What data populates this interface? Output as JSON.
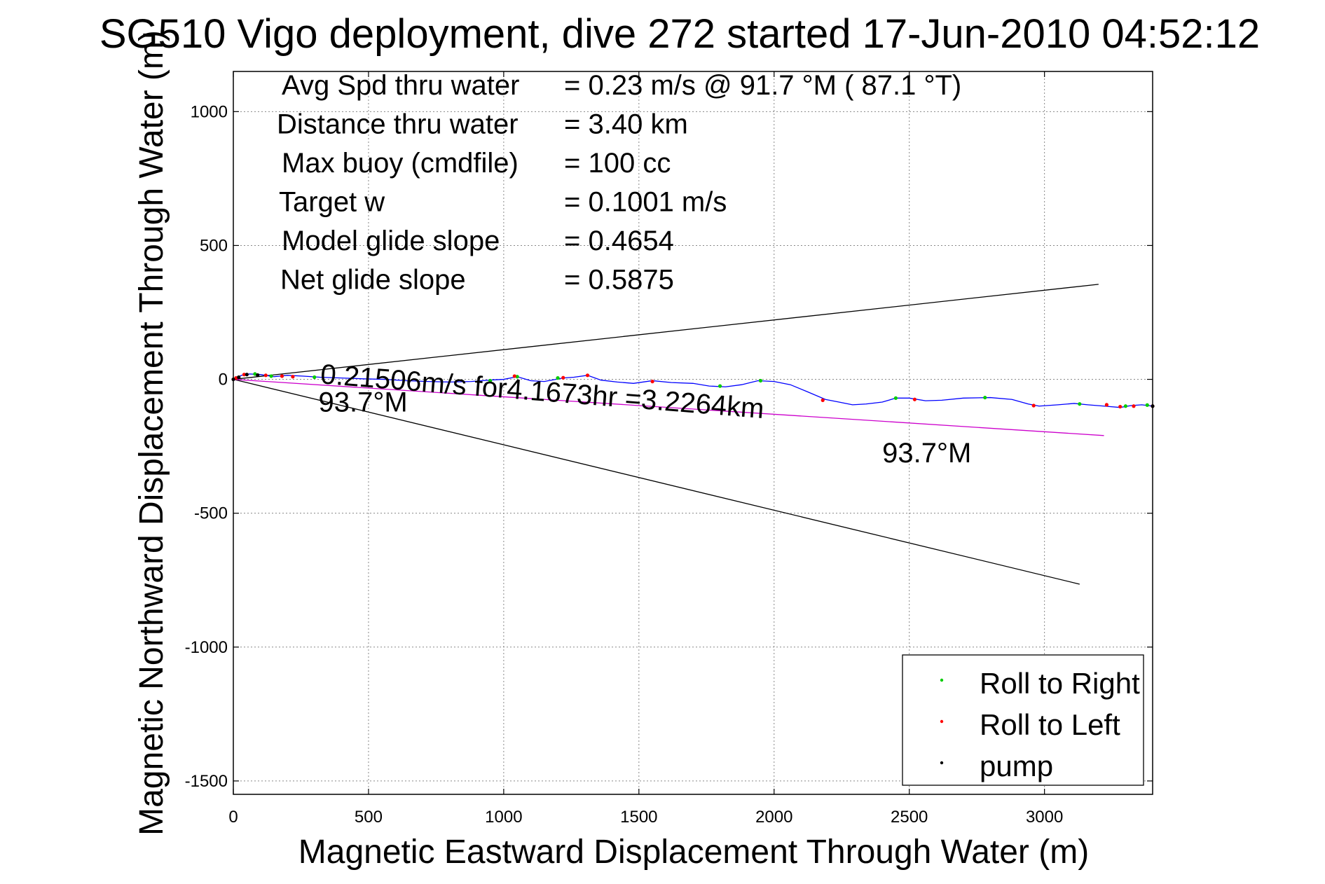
{
  "chart_data": {
    "type": "line",
    "title": "SG510 Vigo deployment, dive 272 started 17-Jun-2010 04:52:12",
    "xlabel": "Magnetic Eastward Displacement Through Water (m)",
    "ylabel": "Magnetic Northward Displacement Through Water (m)",
    "xlim": [
      0,
      3400
    ],
    "ylim": [
      -1550,
      1150
    ],
    "xticks": [
      0,
      500,
      1000,
      1500,
      2000,
      2500,
      3000
    ],
    "yticks": [
      1000,
      500,
      0,
      -500,
      -1000,
      -1500
    ],
    "grid": true,
    "legend_position": "bottom-right",
    "info_lines": [
      {
        "label": "Avg Spd thru water",
        "value": "=  0.23 m/s @  91.7 °M ( 87.1 °T)"
      },
      {
        "label": "Distance thru water",
        "value": "=  3.40 km"
      },
      {
        "label": "Max buoy (cmdfile)",
        "value": "= 100 cc"
      },
      {
        "label": "Target w",
        "value": "= 0.1001 m/s"
      },
      {
        "label": "Model glide slope",
        "value": "= 0.4654"
      },
      {
        "label": "Net glide slope",
        "value": "= 0.5875"
      }
    ],
    "annotations": [
      {
        "text": "0.21506m/s for4.1673hr =3.2264km",
        "x": 320,
        "y": -15,
        "angle": 4.5
      },
      {
        "text": "93.7°M",
        "x": 315,
        "y": -120,
        "angle": 0
      },
      {
        "text": "93.7°M",
        "x": 2400,
        "y": -310,
        "angle": 0
      }
    ],
    "lines": [
      {
        "name": "upper-bound",
        "color": "#000000",
        "x": [
          0,
          3200
        ],
        "y": [
          0,
          355
        ]
      },
      {
        "name": "lower-bound",
        "color": "#000000",
        "x": [
          0,
          3130
        ],
        "y": [
          0,
          -765
        ]
      },
      {
        "name": "heading-93.7",
        "color": "#cc00cc",
        "x": [
          0,
          3220
        ],
        "y": [
          0,
          -210
        ]
      }
    ],
    "series": [
      {
        "name": "track",
        "color": "#0000ff",
        "x": [
          0,
          30,
          60,
          100,
          150,
          200,
          260,
          320,
          400,
          480,
          560,
          640,
          720,
          800,
          880,
          960,
          1000,
          1050,
          1100,
          1150,
          1220,
          1260,
          1310,
          1360,
          1420,
          1480,
          1550,
          1620,
          1700,
          1760,
          1820,
          1880,
          1940,
          2000,
          2060,
          2120,
          2190,
          2240,
          2290,
          2340,
          2400,
          2450,
          2500,
          2560,
          2620,
          2700,
          2800,
          2880,
          2940,
          2980,
          3050,
          3110,
          3160,
          3220,
          3280,
          3320,
          3360,
          3400
        ],
        "y": [
          0,
          15,
          20,
          18,
          10,
          15,
          12,
          8,
          5,
          2,
          0,
          -5,
          -8,
          -10,
          -8,
          -2,
          0,
          10,
          -5,
          -8,
          5,
          8,
          15,
          -3,
          -10,
          -15,
          -5,
          -12,
          -15,
          -25,
          -28,
          -20,
          -5,
          -8,
          -20,
          -45,
          -75,
          -85,
          -95,
          -92,
          -85,
          -70,
          -70,
          -80,
          -78,
          -70,
          -68,
          -75,
          -92,
          -100,
          -95,
          -90,
          -95,
          -100,
          -105,
          -98,
          -95,
          -100
        ]
      },
      {
        "name": "Roll to Right",
        "color": "#00cc00",
        "x": [
          80,
          140,
          300,
          950,
          1050,
          1200,
          1800,
          1950,
          2450,
          2780,
          3130,
          3300,
          3380
        ],
        "y": [
          20,
          12,
          8,
          -5,
          10,
          5,
          -25,
          -5,
          -70,
          -68,
          -92,
          -100,
          -96
        ]
      },
      {
        "name": "Roll to Left",
        "color": "#ff0000",
        "x": [
          10,
          40,
          120,
          180,
          220,
          1040,
          1220,
          1310,
          1550,
          2180,
          2520,
          2960,
          3230,
          3280,
          3330,
          3400
        ],
        "y": [
          5,
          18,
          15,
          12,
          10,
          12,
          6,
          15,
          -8,
          -78,
          -75,
          -98,
          -95,
          -102,
          -100,
          -100
        ]
      },
      {
        "name": "pump",
        "color": "#000000",
        "x": [
          0,
          20,
          50,
          90,
          3400
        ],
        "y": [
          0,
          8,
          18,
          16,
          -100
        ]
      }
    ]
  }
}
